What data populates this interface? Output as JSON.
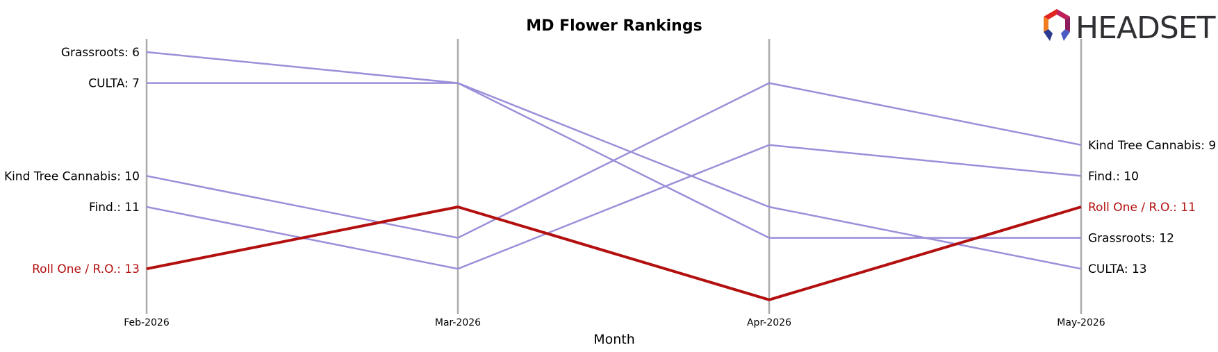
{
  "chart_data": {
    "type": "line",
    "subtype": "bump",
    "title": "MD Flower Rankings",
    "xlabel": "Month",
    "ylabel": "",
    "categories": [
      "Feb-2026",
      "Mar-2026",
      "Apr-2026",
      "May-2026"
    ],
    "y_reversed": true,
    "ylim": [
      15,
      5
    ],
    "grid": false,
    "highlight_color": "#b30f0f",
    "base_color": "#9b8fd9",
    "axis_line_color": "#ababab",
    "series": [
      {
        "name": "Grassroots",
        "values": [
          6,
          7,
          12,
          12
        ],
        "highlight": false
      },
      {
        "name": "CULTA",
        "values": [
          7,
          7,
          11,
          13
        ],
        "highlight": false
      },
      {
        "name": "Kind Tree Cannabis",
        "values": [
          10,
          12,
          7,
          9
        ],
        "highlight": false
      },
      {
        "name": "Find.",
        "values": [
          11,
          13,
          9,
          10
        ],
        "highlight": false
      },
      {
        "name": "Roll One / R.O.",
        "values": [
          13,
          11,
          14,
          11
        ],
        "highlight": true
      }
    ]
  },
  "logo": {
    "text": "HEADSET",
    "colors": [
      "#e2241f",
      "#c01f5b",
      "#8f1d5e",
      "#f07e21",
      "#2b3a8f",
      "#4a5cc4"
    ]
  }
}
